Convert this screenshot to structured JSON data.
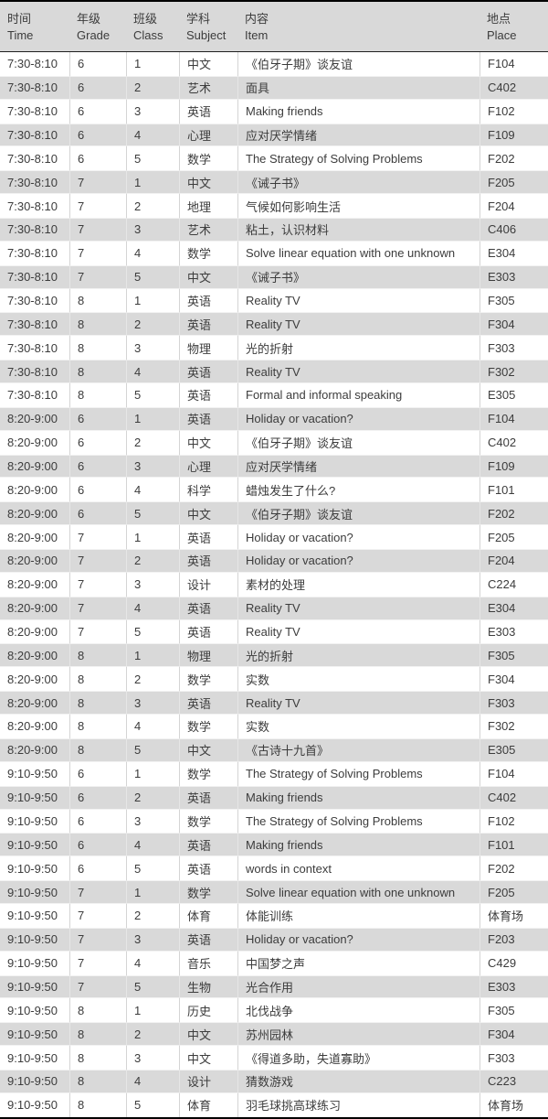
{
  "table": {
    "columns": [
      {
        "zh": "时间",
        "en": "Time"
      },
      {
        "zh": "年级",
        "en": "Grade"
      },
      {
        "zh": "班级",
        "en": "Class"
      },
      {
        "zh": "学科",
        "en": "Subject"
      },
      {
        "zh": "内容",
        "en": "Item"
      },
      {
        "zh": "地点",
        "en": "Place"
      }
    ],
    "rows": [
      [
        "7:30-8:10",
        "6",
        "1",
        "中文",
        "《伯牙子期》谈友谊",
        "F104"
      ],
      [
        "7:30-8:10",
        "6",
        "2",
        "艺术",
        "面具",
        "C402"
      ],
      [
        "7:30-8:10",
        "6",
        "3",
        "英语",
        "Making friends",
        "F102"
      ],
      [
        "7:30-8:10",
        "6",
        "4",
        "心理",
        "应对厌学情绪",
        "F109"
      ],
      [
        "7:30-8:10",
        "6",
        "5",
        "数学",
        "The Strategy of Solving Problems",
        "F202"
      ],
      [
        "7:30-8:10",
        "7",
        "1",
        "中文",
        "《诫子书》",
        "F205"
      ],
      [
        "7:30-8:10",
        "7",
        "2",
        "地理",
        "气候如何影响生活",
        "F204"
      ],
      [
        "7:30-8:10",
        "7",
        "3",
        "艺术",
        "粘土，认识材料",
        "C406"
      ],
      [
        "7:30-8:10",
        "7",
        "4",
        "数学",
        "Solve linear equation with one unknown",
        "E304"
      ],
      [
        "7:30-8:10",
        "7",
        "5",
        "中文",
        "《诫子书》",
        "E303"
      ],
      [
        "7:30-8:10",
        "8",
        "1",
        "英语",
        "Reality TV",
        "F305"
      ],
      [
        "7:30-8:10",
        "8",
        "2",
        "英语",
        "Reality TV",
        "F304"
      ],
      [
        "7:30-8:10",
        "8",
        "3",
        "物理",
        "光的折射",
        "F303"
      ],
      [
        "7:30-8:10",
        "8",
        "4",
        "英语",
        "Reality TV",
        "F302"
      ],
      [
        "7:30-8:10",
        "8",
        "5",
        "英语",
        "Formal and informal speaking",
        "E305"
      ],
      [
        "8:20-9:00",
        "6",
        "1",
        "英语",
        "Holiday or vacation?",
        "F104"
      ],
      [
        "8:20-9:00",
        "6",
        "2",
        "中文",
        "《伯牙子期》谈友谊",
        "C402"
      ],
      [
        "8:20-9:00",
        "6",
        "3",
        "心理",
        "应对厌学情绪",
        "F109"
      ],
      [
        "8:20-9:00",
        "6",
        "4",
        "科学",
        "蜡烛发生了什么?",
        "F101"
      ],
      [
        "8:20-9:00",
        "6",
        "5",
        "中文",
        "《伯牙子期》谈友谊",
        "F202"
      ],
      [
        "8:20-9:00",
        "7",
        "1",
        "英语",
        "Holiday or vacation?",
        "F205"
      ],
      [
        "8:20-9:00",
        "7",
        "2",
        "英语",
        "Holiday or vacation?",
        "F204"
      ],
      [
        "8:20-9:00",
        "7",
        "3",
        "设计",
        "素材的处理",
        "C224"
      ],
      [
        "8:20-9:00",
        "7",
        "4",
        "英语",
        "Reality TV",
        "E304"
      ],
      [
        "8:20-9:00",
        "7",
        "5",
        "英语",
        "Reality TV",
        "E303"
      ],
      [
        "8:20-9:00",
        "8",
        "1",
        "物理",
        "光的折射",
        "F305"
      ],
      [
        "8:20-9:00",
        "8",
        "2",
        "数学",
        "实数",
        "F304"
      ],
      [
        "8:20-9:00",
        "8",
        "3",
        "英语",
        "Reality TV",
        "F303"
      ],
      [
        "8:20-9:00",
        "8",
        "4",
        "数学",
        "实数",
        "F302"
      ],
      [
        "8:20-9:00",
        "8",
        "5",
        "中文",
        "《古诗十九首》",
        "E305"
      ],
      [
        "9:10-9:50",
        "6",
        "1",
        "数学",
        "The Strategy of Solving Problems",
        "F104"
      ],
      [
        "9:10-9:50",
        "6",
        "2",
        "英语",
        "Making friends",
        "C402"
      ],
      [
        "9:10-9:50",
        "6",
        "3",
        "数学",
        "The Strategy of Solving Problems",
        "F102"
      ],
      [
        "9:10-9:50",
        "6",
        "4",
        "英语",
        "Making friends",
        "F101"
      ],
      [
        "9:10-9:50",
        "6",
        "5",
        "英语",
        "words in context",
        "F202"
      ],
      [
        "9:10-9:50",
        "7",
        "1",
        "数学",
        "Solve linear equation with one unknown",
        "F205"
      ],
      [
        "9:10-9:50",
        "7",
        "2",
        "体育",
        "体能训练",
        "体育场"
      ],
      [
        "9:10-9:50",
        "7",
        "3",
        "英语",
        "Holiday or vacation?",
        "F203"
      ],
      [
        "9:10-9:50",
        "7",
        "4",
        "音乐",
        "中国梦之声",
        "C429"
      ],
      [
        "9:10-9:50",
        "7",
        "5",
        "生物",
        "光合作用",
        "E303"
      ],
      [
        "9:10-9:50",
        "8",
        "1",
        "历史",
        "北伐战争",
        "F305"
      ],
      [
        "9:10-9:50",
        "8",
        "2",
        "中文",
        "苏州园林",
        "F304"
      ],
      [
        "9:10-9:50",
        "8",
        "3",
        "中文",
        "《得道多助，失道寡助》",
        "F303"
      ],
      [
        "9:10-9:50",
        "8",
        "4",
        "设计",
        "猜数游戏",
        "C223"
      ],
      [
        "9:10-9:50",
        "8",
        "5",
        "体育",
        "羽毛球挑高球练习",
        "体育场"
      ]
    ],
    "column_keys": [
      "time",
      "grade",
      "class",
      "subject",
      "item",
      "place"
    ]
  },
  "colors": {
    "header_bg": "#d9d9d9",
    "row_alt_bg": "#d9d9d9",
    "row_bg": "#ffffff",
    "border_dark": "#000000",
    "text": "#3c3c3c"
  }
}
